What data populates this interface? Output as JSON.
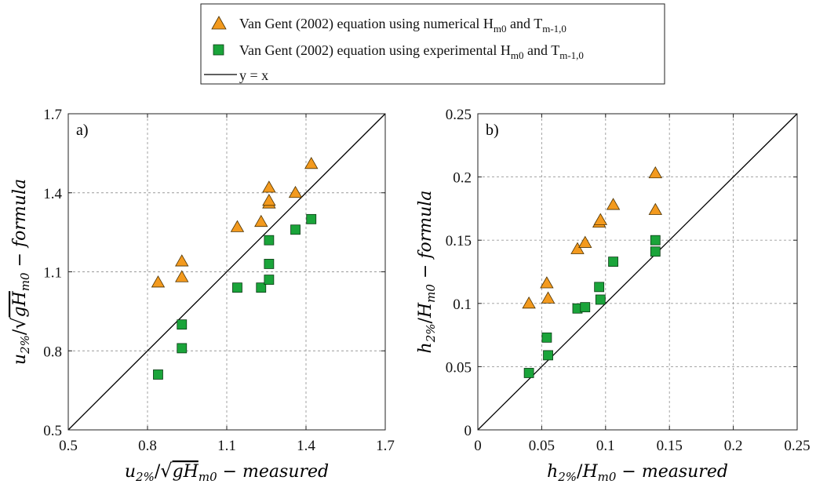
{
  "legend": {
    "entries": [
      {
        "text": "Van Gent (2002) equation using numerical H",
        "sub1": "m0",
        "mid": " and T",
        "sub2": "m-1,0",
        "marker": "triangle",
        "color": "#f39a1e"
      },
      {
        "text": "Van Gent (2002) equation using experimental H",
        "sub1": "m0",
        "mid": " and T",
        "sub2": "m-1,0",
        "marker": "square",
        "color": "#1aa43a"
      },
      {
        "text": "y = x",
        "sub1": "",
        "mid": "",
        "sub2": "",
        "marker": "line",
        "color": "#000000"
      }
    ]
  },
  "chart_data": [
    {
      "type": "scatter",
      "panel_label": "a)",
      "xlabel": {
        "main": "u",
        "sub": "2%",
        "slash": "/",
        "sqrt": "gH",
        "sqrt_sub": "m0",
        "suffix": " − measured"
      },
      "ylabel": {
        "main": "u",
        "sub": "2%",
        "slash": "/",
        "sqrt": "gH",
        "sqrt_sub": "m0",
        "suffix": " − formula"
      },
      "xlim": [
        0.5,
        1.7
      ],
      "ylim": [
        0.5,
        1.7
      ],
      "xticks": [
        0.5,
        0.8,
        1.1,
        1.4,
        1.7
      ],
      "yticks": [
        0.5,
        0.8,
        1.1,
        1.4,
        1.7
      ],
      "xtick_labels": [
        "0.5",
        "0.8",
        "1.1",
        "1.4",
        "1.7"
      ],
      "ytick_labels": [
        "0.5",
        "0.8",
        "1.1",
        "1.4",
        "1.7"
      ],
      "grid": true,
      "series": [
        {
          "marker": "triangle",
          "color": "#f39a1e",
          "x": [
            0.84,
            0.93,
            0.93,
            1.14,
            1.23,
            1.26,
            1.26,
            1.26,
            1.36,
            1.42
          ],
          "y": [
            1.06,
            1.14,
            1.08,
            1.27,
            1.29,
            1.36,
            1.42,
            1.37,
            1.4,
            1.51
          ]
        },
        {
          "marker": "square",
          "color": "#1aa43a",
          "x": [
            0.84,
            0.93,
            0.93,
            1.14,
            1.23,
            1.26,
            1.26,
            1.26,
            1.36,
            1.42
          ],
          "y": [
            0.71,
            0.9,
            0.81,
            1.04,
            1.04,
            1.07,
            1.13,
            1.22,
            1.26,
            1.3
          ]
        }
      ]
    },
    {
      "type": "scatter",
      "panel_label": "b)",
      "xlabel": {
        "main": "h",
        "sub": "2%",
        "slash": "/",
        "sqrt": "",
        "denom": "H",
        "denom_sub": "m0",
        "suffix": " − measured"
      },
      "ylabel": {
        "main": "h",
        "sub": "2%",
        "slash": "/",
        "sqrt": "",
        "denom": "H",
        "denom_sub": "m0",
        "suffix": " − formula"
      },
      "xlim": [
        0,
        0.25
      ],
      "ylim": [
        0,
        0.25
      ],
      "xticks": [
        0,
        0.05,
        0.1,
        0.15,
        0.2,
        0.25
      ],
      "yticks": [
        0,
        0.05,
        0.1,
        0.15,
        0.2,
        0.25
      ],
      "xtick_labels": [
        "0",
        "0.05",
        "0.1",
        "0.15",
        "0.2",
        "0.25"
      ],
      "ytick_labels": [
        "0",
        "0.05",
        "0.1",
        "0.15",
        "0.2",
        "0.25"
      ],
      "grid": true,
      "series": [
        {
          "marker": "triangle",
          "color": "#f39a1e",
          "x": [
            0.04,
            0.054,
            0.055,
            0.078,
            0.084,
            0.095,
            0.096,
            0.106,
            0.139,
            0.139
          ],
          "y": [
            0.1,
            0.116,
            0.104,
            0.143,
            0.148,
            0.164,
            0.166,
            0.178,
            0.203,
            0.174
          ]
        },
        {
          "marker": "square",
          "color": "#1aa43a",
          "x": [
            0.04,
            0.054,
            0.055,
            0.078,
            0.084,
            0.095,
            0.096,
            0.106,
            0.139,
            0.139
          ],
          "y": [
            0.045,
            0.073,
            0.059,
            0.096,
            0.097,
            0.113,
            0.103,
            0.133,
            0.15,
            0.141
          ]
        }
      ]
    }
  ]
}
